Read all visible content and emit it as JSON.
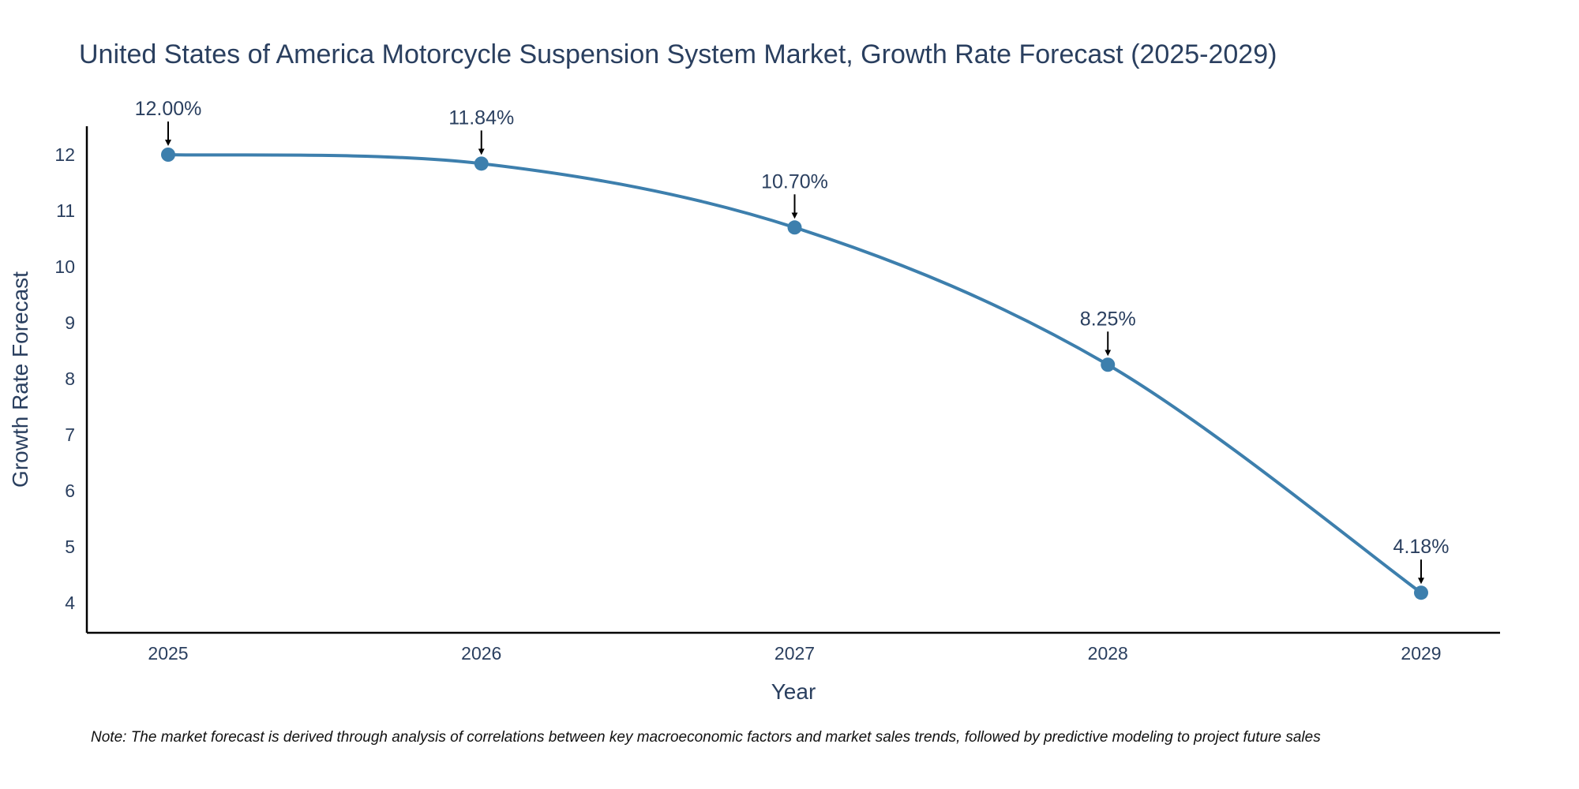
{
  "chart_data": {
    "type": "line",
    "title": "United States of America Motorcycle Suspension System Market, Growth Rate Forecast (2025-2029)",
    "xlabel": "Year",
    "ylabel": "Growth Rate Forecast",
    "categories": [
      "2025",
      "2026",
      "2027",
      "2028",
      "2029"
    ],
    "values": [
      12.0,
      11.84,
      10.7,
      8.25,
      4.18
    ],
    "data_labels": [
      "12.00%",
      "11.84%",
      "10.70%",
      "8.25%",
      "4.18%"
    ],
    "y_ticks": [
      4,
      5,
      6,
      7,
      8,
      9,
      10,
      11,
      12
    ],
    "ylim": [
      3.65,
      12.5
    ],
    "line_color": "#3d7fad",
    "marker_color": "#3d7fad",
    "grid": false,
    "legend": "none"
  },
  "note": "Note: The market forecast is derived through analysis of correlations between key macroeconomic factors and market sales trends, followed by predictive modeling to project future sales"
}
